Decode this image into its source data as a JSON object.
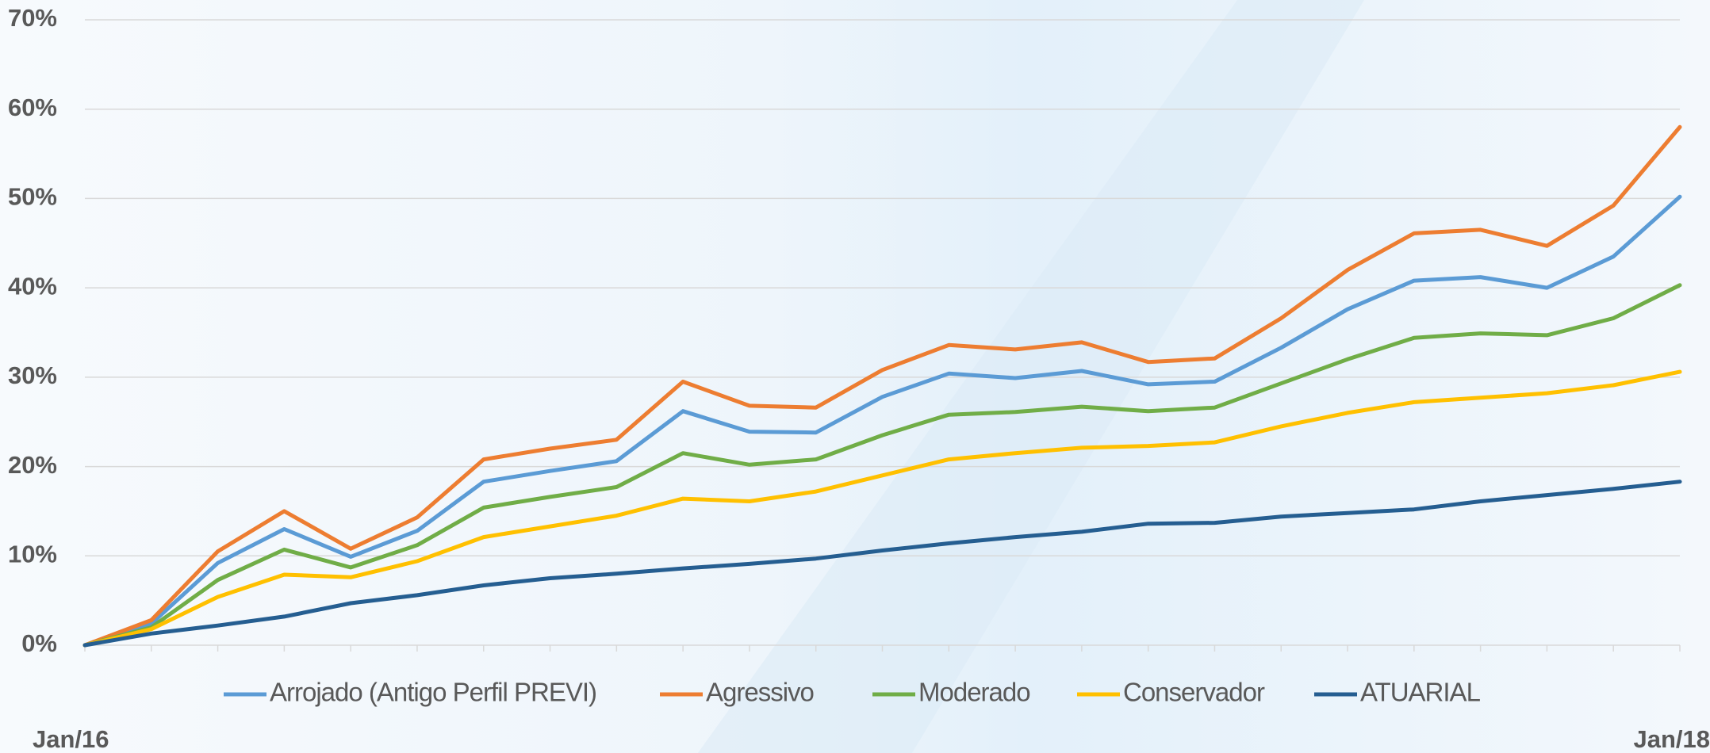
{
  "chart_data": {
    "type": "line",
    "categories": [
      "Jan/16",
      null,
      null,
      null,
      null,
      null,
      null,
      null,
      null,
      null,
      null,
      null,
      null,
      null,
      null,
      null,
      null,
      null,
      null,
      null,
      null,
      null,
      null,
      null,
      "Jan/18"
    ],
    "ylim": [
      0,
      70
    ],
    "yticks": [
      {
        "value": 0,
        "label": "0%"
      },
      {
        "value": 10,
        "label": "10%"
      },
      {
        "value": 20,
        "label": "20%"
      },
      {
        "value": 30,
        "label": "30%"
      },
      {
        "value": 40,
        "label": "40%"
      },
      {
        "value": 50,
        "label": "50%"
      },
      {
        "value": 60,
        "label": "60%"
      },
      {
        "value": 70,
        "label": "70%"
      }
    ],
    "grid": true,
    "legend": "bottom",
    "series": [
      {
        "name": "Arrojado (Antigo Perfil PREVI)",
        "color": "#5b9bd5",
        "values": [
          0,
          2.4,
          9.2,
          13,
          9.9,
          12.8,
          18.3,
          19.5,
          20.6,
          26.2,
          23.9,
          23.8,
          27.8,
          30.4,
          29.9,
          30.7,
          29.2,
          29.5,
          33.3,
          37.6,
          40.8,
          41.2,
          40,
          43.5,
          50.2
        ]
      },
      {
        "name": "Agressivo",
        "color": "#ed7d31",
        "values": [
          0,
          2.8,
          10.5,
          15,
          10.8,
          14.3,
          20.8,
          22,
          23,
          29.5,
          26.8,
          26.6,
          30.8,
          33.6,
          33.1,
          33.9,
          31.7,
          32.1,
          36.6,
          42,
          46.1,
          46.5,
          44.7,
          49.2,
          58
        ]
      },
      {
        "name": "Moderado",
        "color": "#70ad47",
        "values": [
          0,
          2,
          7.3,
          10.7,
          8.7,
          11.2,
          15.4,
          16.6,
          17.7,
          21.5,
          20.2,
          20.8,
          23.5,
          25.8,
          26.1,
          26.7,
          26.2,
          26.6,
          29.3,
          32,
          34.4,
          34.9,
          34.7,
          36.6,
          40.3
        ]
      },
      {
        "name": "Conservador",
        "color": "#ffc000",
        "values": [
          0,
          1.8,
          5.4,
          7.9,
          7.6,
          9.4,
          12.1,
          13.3,
          14.5,
          16.4,
          16.1,
          17.2,
          19,
          20.8,
          21.5,
          22.1,
          22.3,
          22.7,
          24.5,
          26,
          27.2,
          27.7,
          28.2,
          29.1,
          30.6
        ]
      },
      {
        "name": "ATUARIAL",
        "color": "#255e91",
        "values": [
          0,
          1.3,
          2.2,
          3.2,
          4.7,
          5.6,
          6.7,
          7.5,
          8,
          8.6,
          9.1,
          9.7,
          10.6,
          11.4,
          12.1,
          12.7,
          13.6,
          13.7,
          14.4,
          14.8,
          15.2,
          16.1,
          16.8,
          17.5,
          18.3
        ]
      }
    ]
  }
}
